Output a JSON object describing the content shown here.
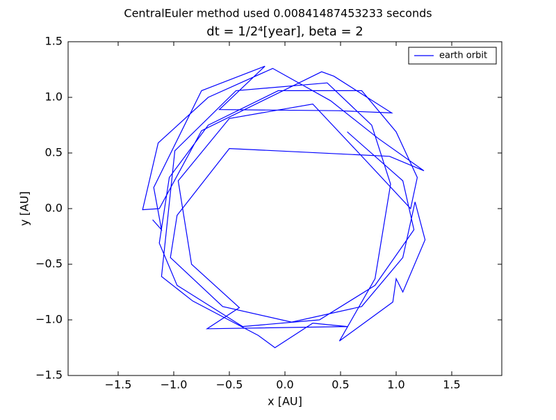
{
  "chart_data": {
    "type": "line",
    "suptitle": "CentralEuler method used 0.00841487453233 seconds",
    "title": "dt = 1/2⁴[year], beta = 2",
    "xlabel": "x [AU]",
    "ylabel": "y [AU]",
    "legend": "upper right",
    "xlim": [
      -1.95,
      1.95
    ],
    "ylim": [
      -1.5,
      1.5
    ],
    "xticks": [
      {
        "value": -1.5,
        "label": "−1.5"
      },
      {
        "value": -1.0,
        "label": "−1.0"
      },
      {
        "value": -0.5,
        "label": "−0.5"
      },
      {
        "value": 0,
        "label": "0.0"
      },
      {
        "value": 0.5,
        "label": "0.5"
      },
      {
        "value": 1.0,
        "label": "1.0"
      },
      {
        "value": 1.5,
        "label": "1.5"
      }
    ],
    "yticks": [
      {
        "value": -1.5,
        "label": "−1.5"
      },
      {
        "value": -1.0,
        "label": "−1.0"
      },
      {
        "value": -0.5,
        "label": "−0.5"
      },
      {
        "value": 0,
        "label": "0.0"
      },
      {
        "value": 0.5,
        "label": "0.5"
      },
      {
        "value": 1.0,
        "label": "1.0"
      },
      {
        "value": 1.5,
        "label": "1.5"
      }
    ],
    "series": [
      {
        "name": "earth orbit",
        "color": "#0000ff",
        "x": [
          -1.19,
          -1.11,
          -1.18,
          -0.75,
          -0.18,
          -0.59,
          0.48,
          0.96,
          0.44,
          0.33,
          -0.75,
          -1.13,
          -1.28,
          -1.14,
          -0.69,
          -0.11,
          0.41,
          0.84,
          1.25,
          0.94,
          -0.5,
          -0.97,
          -1.03,
          -0.56,
          0.06,
          0.69,
          1.06,
          1.17,
          1.26,
          1.06,
          1.0,
          0.97,
          0.49,
          0.81,
          0.95,
          0.78,
          0.38,
          -0.44,
          -0.99,
          -1.11,
          -0.83,
          -0.24,
          -0.09,
          0.25,
          0.56,
          -0.7,
          -0.41,
          -0.84,
          -0.96,
          -0.5,
          0.25,
          0.72,
          1.13,
          1.19,
          1.0,
          0.69,
          -0.06,
          -0.69,
          -1.04,
          -1.13,
          -0.97,
          -0.38,
          0.31,
          0.81,
          1.16,
          1.06,
          0.56
        ],
        "values": [
          -0.1,
          -0.19,
          0.19,
          1.06,
          1.28,
          0.89,
          0.88,
          0.86,
          1.19,
          1.23,
          0.7,
          0.0,
          -0.01,
          0.59,
          1.0,
          1.26,
          0.97,
          0.63,
          0.34,
          0.47,
          0.54,
          -0.06,
          -0.44,
          -0.88,
          -1.02,
          -0.88,
          -0.44,
          0.06,
          -0.28,
          -0.75,
          -0.63,
          -0.84,
          -1.19,
          -0.63,
          0.22,
          0.75,
          1.13,
          1.06,
          0.52,
          -0.61,
          -0.83,
          -1.14,
          -1.25,
          -1.03,
          -1.06,
          -1.08,
          -0.89,
          -0.5,
          0.25,
          0.81,
          0.94,
          0.44,
          0.0,
          0.28,
          0.69,
          1.06,
          1.06,
          0.75,
          0.28,
          -0.31,
          -0.69,
          -1.06,
          -1.0,
          -0.69,
          -0.19,
          0.25,
          0.69
        ]
      }
    ]
  }
}
